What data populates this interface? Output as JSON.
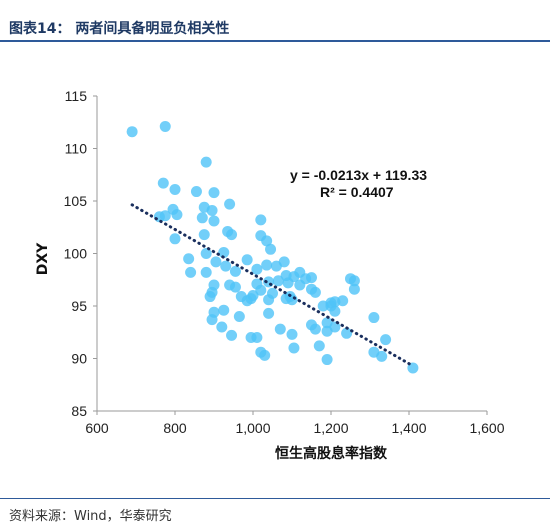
{
  "header": {
    "title": "图表14： 两者间具备明显负相关性"
  },
  "footer": {
    "source": "资料来源：Wind，华泰研究"
  },
  "chart_data": {
    "type": "scatter",
    "xlabel": "恒生高股息率指数",
    "ylabel": "DXY",
    "xlim": [
      600,
      1600
    ],
    "ylim": [
      85,
      115
    ],
    "x_ticks": [
      "600",
      "800",
      "1,000",
      "1,200",
      "1,400",
      "1,600"
    ],
    "y_ticks": [
      "85",
      "90",
      "95",
      "100",
      "105",
      "110",
      "115"
    ],
    "grid": false,
    "marker_color": "#4fc3f7",
    "trendline": {
      "slope": -0.0213,
      "intercept": 119.33,
      "x_range": [
        690,
        1410
      ],
      "color": "#1a2f5e",
      "style": "dotted"
    },
    "annotations": [
      "y = -0.0213x + 119.33",
      "R² = 0.4407"
    ],
    "points": [
      [
        690,
        111.6
      ],
      [
        775,
        112.1
      ],
      [
        770,
        106.7
      ],
      [
        800,
        106.1
      ],
      [
        855,
        105.9
      ],
      [
        880,
        108.7
      ],
      [
        900,
        105.8
      ],
      [
        760,
        103.5
      ],
      [
        775,
        103.6
      ],
      [
        795,
        104.2
      ],
      [
        805,
        103.7
      ],
      [
        870,
        103.4
      ],
      [
        875,
        104.4
      ],
      [
        895,
        104.1
      ],
      [
        940,
        104.7
      ],
      [
        800,
        101.4
      ],
      [
        875,
        101.8
      ],
      [
        900,
        103.1
      ],
      [
        935,
        102.1
      ],
      [
        945,
        101.8
      ],
      [
        1020,
        103.2
      ],
      [
        1020,
        101.7
      ],
      [
        1035,
        101.2
      ],
      [
        1045,
        100.4
      ],
      [
        835,
        99.5
      ],
      [
        880,
        100.0
      ],
      [
        925,
        100.1
      ],
      [
        840,
        98.2
      ],
      [
        880,
        98.2
      ],
      [
        905,
        99.2
      ],
      [
        930,
        98.8
      ],
      [
        955,
        98.3
      ],
      [
        985,
        99.4
      ],
      [
        1010,
        98.5
      ],
      [
        1035,
        98.9
      ],
      [
        1060,
        98.8
      ],
      [
        1080,
        99.2
      ],
      [
        1085,
        97.9
      ],
      [
        1105,
        97.8
      ],
      [
        1120,
        98.2
      ],
      [
        1135,
        97.6
      ],
      [
        1150,
        97.7
      ],
      [
        1010,
        97.1
      ],
      [
        1040,
        97.3
      ],
      [
        1065,
        97.4
      ],
      [
        1090,
        97.2
      ],
      [
        1120,
        97.0
      ],
      [
        1150,
        96.6
      ],
      [
        1160,
        96.3
      ],
      [
        1000,
        96.0
      ],
      [
        1020,
        96.5
      ],
      [
        1050,
        96.2
      ],
      [
        1100,
        95.6
      ],
      [
        890,
        95.9
      ],
      [
        895,
        96.3
      ],
      [
        900,
        97.0
      ],
      [
        940,
        97.0
      ],
      [
        955,
        96.8
      ],
      [
        970,
        95.9
      ],
      [
        985,
        95.5
      ],
      [
        995,
        95.7
      ],
      [
        1040,
        95.6
      ],
      [
        1085,
        95.7
      ],
      [
        1095,
        95.9
      ],
      [
        900,
        94.4
      ],
      [
        925,
        94.6
      ],
      [
        965,
        94.0
      ],
      [
        1040,
        94.3
      ],
      [
        1180,
        95.0
      ],
      [
        1200,
        95.3
      ],
      [
        1200,
        95.0
      ],
      [
        1210,
        94.5
      ],
      [
        1210,
        95.4
      ],
      [
        1230,
        95.5
      ],
      [
        1250,
        97.6
      ],
      [
        1260,
        97.4
      ],
      [
        1260,
        96.6
      ],
      [
        895,
        93.7
      ],
      [
        920,
        93.0
      ],
      [
        945,
        92.2
      ],
      [
        995,
        92.0
      ],
      [
        1070,
        92.8
      ],
      [
        1100,
        92.3
      ],
      [
        1150,
        93.2
      ],
      [
        1160,
        92.8
      ],
      [
        1190,
        93.4
      ],
      [
        1210,
        93.0
      ],
      [
        1240,
        92.4
      ],
      [
        1190,
        92.6
      ],
      [
        1310,
        93.9
      ],
      [
        1340,
        91.8
      ],
      [
        1010,
        92.0
      ],
      [
        1020,
        90.6
      ],
      [
        1030,
        90.3
      ],
      [
        1105,
        91.0
      ],
      [
        1170,
        91.2
      ],
      [
        1190,
        89.9
      ],
      [
        1310,
        90.6
      ],
      [
        1330,
        90.2
      ],
      [
        1410,
        89.1
      ]
    ]
  }
}
